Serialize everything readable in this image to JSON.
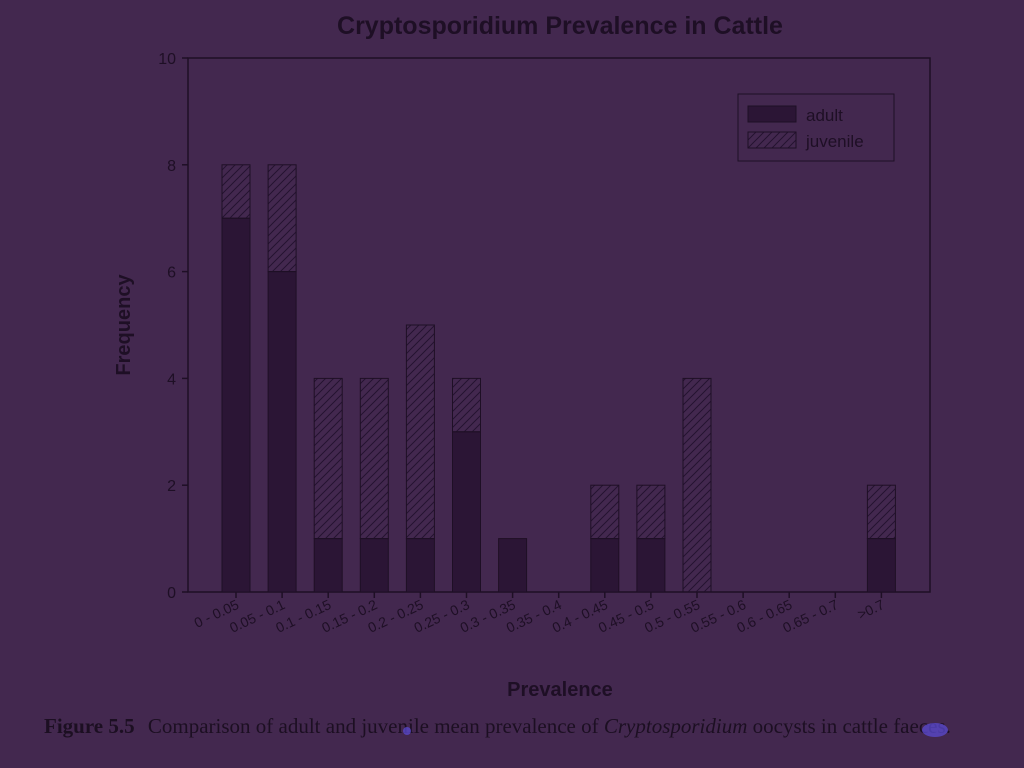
{
  "chart_data": {
    "type": "bar",
    "stacked": true,
    "title": "Cryptosporidium Prevalence in Cattle",
    "xlabel": "Prevalence",
    "ylabel": "Frequency",
    "ylim": [
      0,
      10
    ],
    "yticks": [
      0,
      2,
      4,
      6,
      8,
      10
    ],
    "grid": false,
    "legend": "top-right",
    "categories": [
      "0 - 0.05",
      "0.05 - 0.1",
      "0.1 - 0.15",
      "0.15 - 0.2",
      "0.2 - 0.25",
      "0.25 - 0.3",
      "0.3 - 0.35",
      "0.35 - 0.4",
      "0.4 - 0.45",
      "0.45 - 0.5",
      "0.5 - 0.55",
      "0.55 - 0.6",
      "0.6 - 0.65",
      "0.65 - 0.7",
      ">0.7"
    ],
    "series": [
      {
        "name": "adult",
        "fill": "solid",
        "values": [
          7,
          6,
          1,
          1,
          1,
          3,
          1,
          0,
          1,
          1,
          0,
          0,
          0,
          0,
          1
        ]
      },
      {
        "name": "juvenile",
        "fill": "hatched",
        "values": [
          1,
          2,
          3,
          3,
          4,
          1,
          0,
          0,
          1,
          1,
          4,
          0,
          0,
          0,
          1
        ]
      }
    ]
  },
  "caption": {
    "figure_label": "Figure 5.5",
    "text_before": "Comparison of adult and juvenile mean prevalence of",
    "italic": "Cryptosporidium",
    "text_after": "oocysts in cattle faeces."
  },
  "colors": {
    "background": "#43284f",
    "adult_fill": "#2b1535",
    "juvenile_fill": "#43284f",
    "ink": "#1e0f25"
  }
}
